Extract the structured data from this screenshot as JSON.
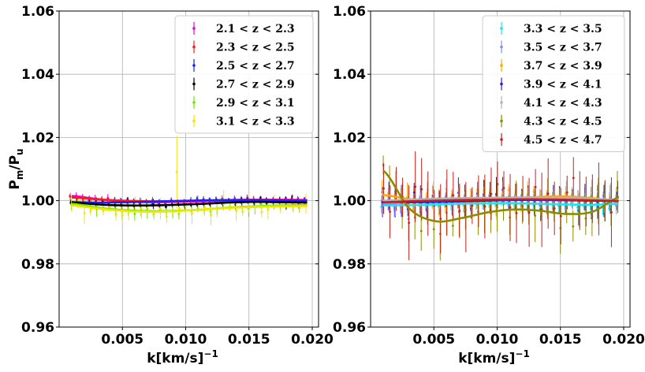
{
  "chart_data": [
    {
      "type": "line",
      "title": "",
      "xlabel": "k[km/s]",
      "xlabel_exp": "-1",
      "ylabel_main": "P",
      "ylabel_num_sub": "m",
      "ylabel_den_sub": "u",
      "ylim": [
        0.96,
        1.06
      ],
      "xlim": [
        0.0,
        0.0205
      ],
      "xticks": [
        "0.005",
        "0.010",
        "0.015",
        "0.020"
      ],
      "yticks": [
        "0.96",
        "0.98",
        "1.00",
        "1.02",
        "1.04",
        "1.06"
      ],
      "legend_position": "top-right",
      "grid": true,
      "series": [
        {
          "name": "2.1 < z < 2.3",
          "color": "#e400e4",
          "curve": [
            1.0015,
            1.0005,
            0.9998,
            0.9995,
            0.9996,
            0.9998,
            1.0,
            1.0002,
            1.0003,
            1.0002
          ]
        },
        {
          "name": "2.3 < z < 2.5",
          "color": "#ff1a1a",
          "curve": [
            1.001,
            1.0004,
            1.0,
            0.9998,
            0.9998,
            1.0,
            1.0002,
            1.0003,
            1.0002,
            1.0001
          ]
        },
        {
          "name": "2.5 < z < 2.7",
          "color": "#1f1fff",
          "curve": [
            0.9995,
            0.9994,
            0.9995,
            0.9997,
            0.9999,
            1.0001,
            1.0002,
            1.0002,
            1.0001,
            1.0
          ]
        },
        {
          "name": "2.7 < z < 2.9",
          "color": "#000000",
          "curve": [
            0.9995,
            0.9988,
            0.9985,
            0.9985,
            0.9987,
            0.999,
            0.9994,
            0.9996,
            0.9995,
            0.9994
          ]
        },
        {
          "name": "2.9 < z < 3.1",
          "color": "#6fe600",
          "curve": [
            0.999,
            0.9978,
            0.997,
            0.9967,
            0.9968,
            0.9972,
            0.9978,
            0.9982,
            0.9985,
            0.9986
          ]
        },
        {
          "name": "3.1 < z < 3.3",
          "color": "#f2e600",
          "curve": [
            0.9985,
            0.9975,
            0.9968,
            0.9965,
            0.9967,
            0.9972,
            0.9977,
            0.998,
            0.9982,
            0.9983
          ]
        }
      ]
    },
    {
      "type": "line",
      "title": "",
      "xlabel": "k[km/s]",
      "xlabel_exp": "-1",
      "ylim": [
        0.96,
        1.06
      ],
      "xlim": [
        0.0,
        0.0205
      ],
      "xticks": [
        "0.005",
        "0.010",
        "0.015",
        "0.020"
      ],
      "yticks": [
        "0.96",
        "0.98",
        "1.00",
        "1.02",
        "1.04",
        "1.06"
      ],
      "legend_position": "top-right",
      "grid": true,
      "series": [
        {
          "name": "3.3 < z < 3.5",
          "color": "#19e6f0",
          "curve": [
            0.9985,
            0.9986,
            0.9988,
            0.999,
            0.9992,
            0.9992,
            0.999,
            0.9988,
            0.9987,
            0.999
          ]
        },
        {
          "name": "3.5 < z < 3.7",
          "color": "#8c8cf5",
          "curve": [
            0.999,
            0.9995,
            0.9998,
            1.0,
            1.0002,
            1.0003,
            1.0003,
            1.0002,
            1.0,
            0.9998
          ]
        },
        {
          "name": "3.7 < z < 3.9",
          "color": "#ffa500",
          "curve": [
            1.0018,
            1.0005,
            0.9998,
            0.9997,
            1.0,
            1.0006,
            1.0012,
            1.0013,
            1.0008,
            0.9998
          ]
        },
        {
          "name": "3.9 < z < 4.1",
          "color": "#1f1fe6",
          "curve": [
            0.9998,
            0.9995,
            0.9996,
            0.9998,
            1.0,
            1.0002,
            1.0002,
            1.0001,
            1.0,
            0.9999
          ]
        },
        {
          "name": "4.1 < z < 4.3",
          "color": "#b4b4b4",
          "curve": [
            1.0,
            1.0003,
            1.0006,
            1.0008,
            1.0009,
            1.001,
            1.001,
            1.0009,
            1.0006,
            1.0003
          ]
        },
        {
          "name": "4.3 < z < 4.5",
          "color": "#8c8c00",
          "curve": [
            1.0095,
            0.9975,
            0.9935,
            0.9945,
            0.9963,
            0.9972,
            0.9968,
            0.9958,
            0.9965,
            1.001
          ]
        },
        {
          "name": "4.5 < z < 4.7",
          "color": "#c81e1e",
          "curve": [
            0.9995,
            0.9998,
            1.0,
            1.0002,
            1.0003,
            1.0004,
            1.0004,
            1.0003,
            1.0001,
            0.9999
          ]
        }
      ]
    }
  ]
}
